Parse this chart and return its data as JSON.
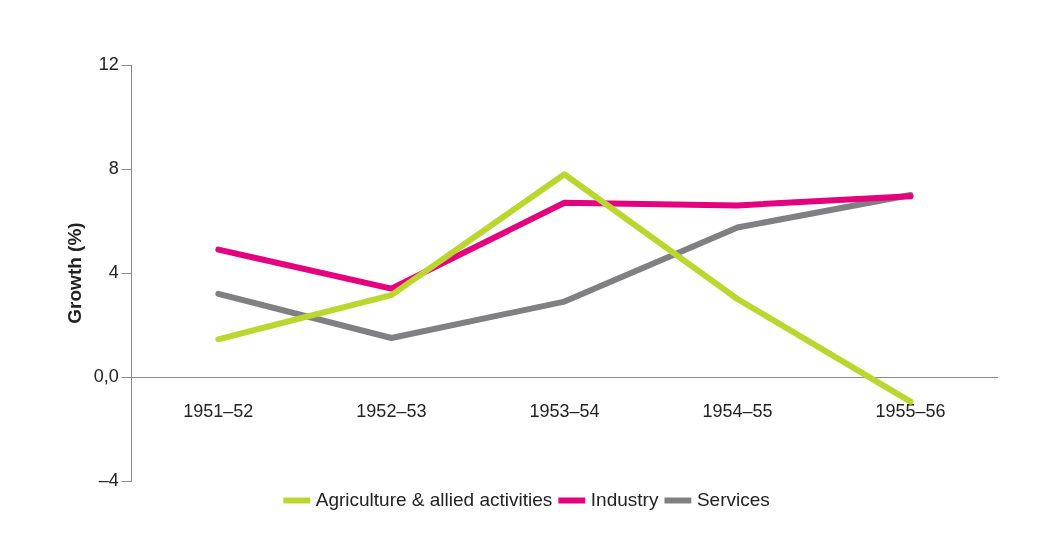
{
  "chart_data": {
    "type": "line",
    "ylabel": "Growth (%)",
    "categories": [
      "1951–52",
      "1952–53",
      "1953–54",
      "1954–55",
      "1955–56"
    ],
    "series": [
      {
        "name": "Agriculture & allied activities",
        "color": "#bcd630",
        "values": [
          1.45,
          3.15,
          7.8,
          3.0,
          -0.95
        ]
      },
      {
        "name": "Industry",
        "color": "#e5007e",
        "values": [
          4.9,
          3.4,
          6.7,
          6.6,
          6.95
        ]
      },
      {
        "name": "Services",
        "color": "#808083",
        "values": [
          3.2,
          1.5,
          2.9,
          5.75,
          7.0
        ]
      }
    ],
    "ylim": [
      -4,
      12
    ],
    "yticks": [
      {
        "value": -4,
        "label": "–4"
      },
      {
        "value": 0,
        "label": "0,0"
      },
      4,
      8,
      12
    ],
    "grid": false,
    "legend": "bottom",
    "marker": "none",
    "line_style": "solid"
  }
}
